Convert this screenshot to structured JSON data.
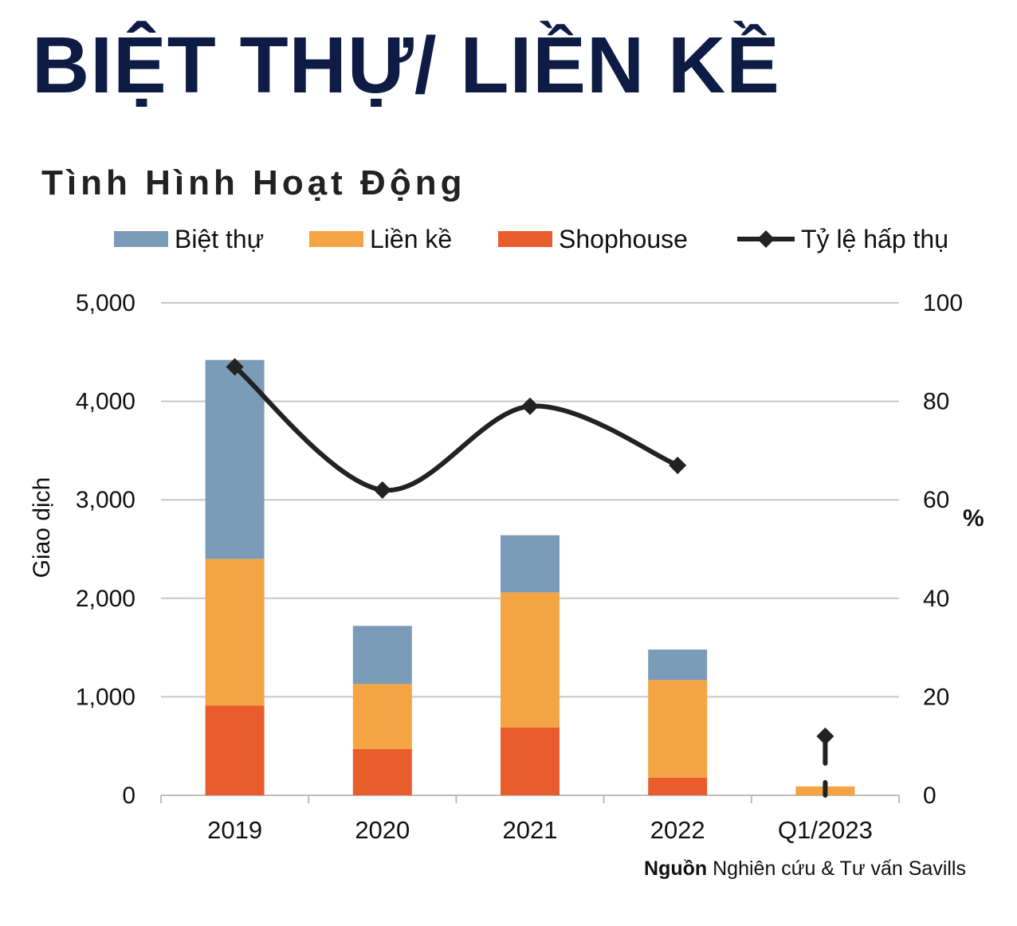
{
  "title": "BIỆT THỰ/ LIỀN KỀ",
  "subtitle": "Tình Hình Hoạt Động",
  "source": {
    "label": "Nguồn",
    "text": " Nghiên cứu & Tư vấn Savills"
  },
  "colors": {
    "title": "#0e1c45",
    "biet_thu": "#7b9cb8",
    "lien_ke": "#f4a443",
    "shophouse": "#e85d2c",
    "line": "#222222",
    "grid": "#c8c8c8"
  },
  "chart_data": {
    "type": "bar",
    "stacked": true,
    "categories": [
      "2019",
      "2020",
      "2021",
      "2022",
      "Q1/2023"
    ],
    "series": [
      {
        "name": "Shophouse",
        "values": [
          910,
          470,
          690,
          180,
          0
        ]
      },
      {
        "name": "Liền kề",
        "values": [
          1490,
          660,
          1370,
          990,
          90
        ]
      },
      {
        "name": "Biệt thự",
        "values": [
          2020,
          590,
          580,
          310,
          0
        ]
      }
    ],
    "line_series": {
      "name": "Tỷ lệ hấp thụ",
      "axis": "right",
      "values": [
        87,
        62,
        79,
        67,
        12
      ]
    },
    "legend": [
      "Biệt thự",
      "Liền kề",
      "Shophouse",
      "Tỷ lệ hấp thụ"
    ],
    "legend_position": "top",
    "ylabel": "Giao dịch",
    "ylim": [
      0,
      5000
    ],
    "yticks": [
      "0",
      "1,000",
      "2,000",
      "3,000",
      "4,000",
      "5,000"
    ],
    "y2label": "%",
    "y2lim": [
      0,
      100
    ],
    "y2ticks": [
      "0",
      "20",
      "40",
      "60",
      "80",
      "100"
    ],
    "grid": true
  }
}
